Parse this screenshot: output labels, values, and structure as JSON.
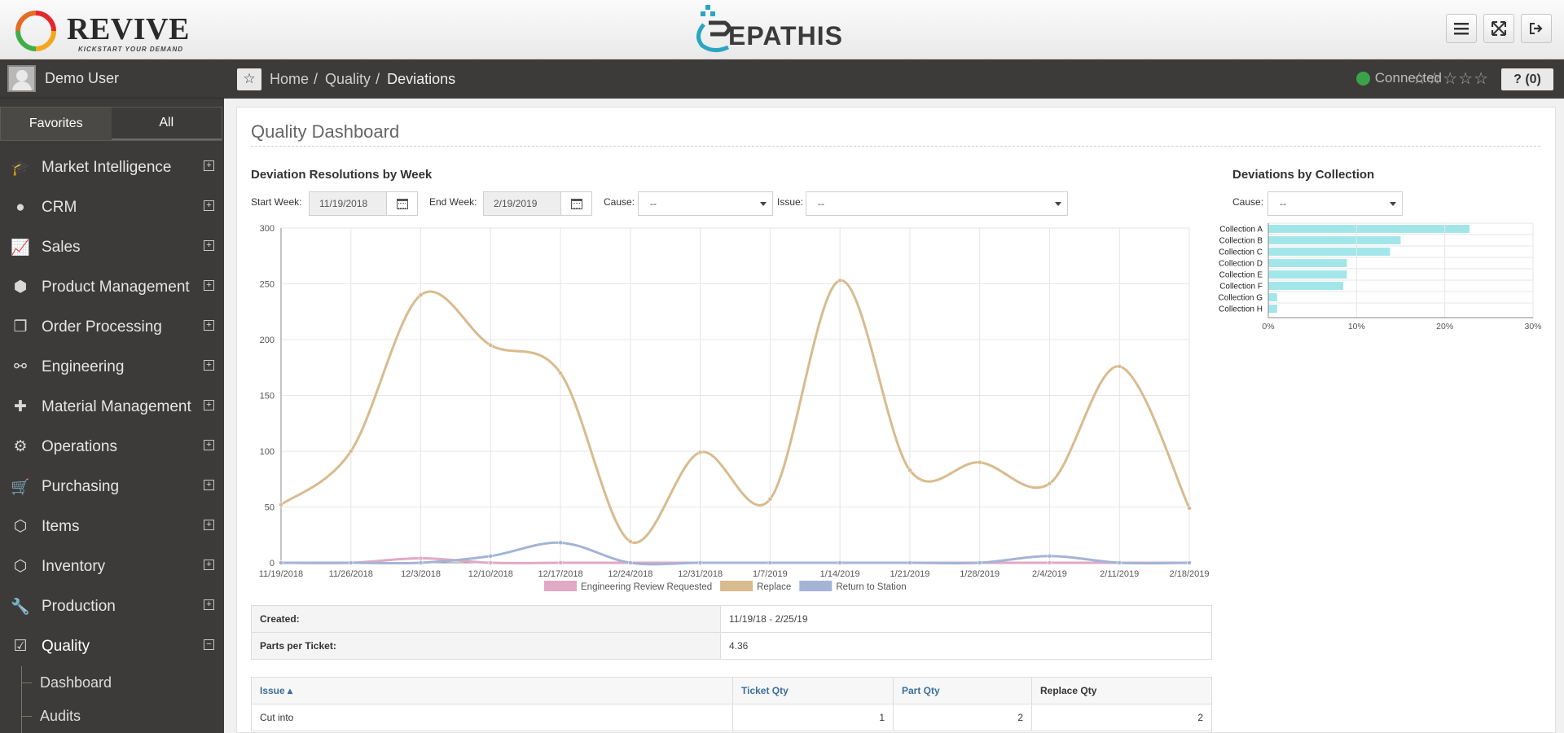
{
  "header": {
    "brand_left": "Revive",
    "brand_left_tagline": "Kickstart your demand",
    "brand_center": "EPATHIS",
    "buttons": [
      {
        "name": "menu-button",
        "icon": "hamburger-icon"
      },
      {
        "name": "fullscreen-button",
        "icon": "expand-icon"
      },
      {
        "name": "logout-button",
        "icon": "logout-icon"
      }
    ]
  },
  "sidebar": {
    "user_name": "Demo User",
    "tabs": [
      {
        "label": "Favorites"
      },
      {
        "label": "All"
      }
    ],
    "items": [
      {
        "label": "Market Intelligence",
        "icon": "graduation-cap-icon",
        "toggle": "⊞"
      },
      {
        "label": "CRM",
        "icon": "user-icon",
        "toggle": "⊞"
      },
      {
        "label": "Sales",
        "icon": "line-chart-icon",
        "toggle": "⊞"
      },
      {
        "label": "Product Management",
        "icon": "cube-icon",
        "toggle": "⊞"
      },
      {
        "label": "Order Processing",
        "icon": "documents-icon",
        "toggle": "⊞"
      },
      {
        "label": "Engineering",
        "icon": "link-icon",
        "toggle": "⊞"
      },
      {
        "label": "Material Management",
        "icon": "puzzle-icon",
        "toggle": "⊞"
      },
      {
        "label": "Operations",
        "icon": "gears-icon",
        "toggle": "⊞"
      },
      {
        "label": "Purchasing",
        "icon": "cart-icon",
        "toggle": "⊞"
      },
      {
        "label": "Items",
        "icon": "cubes-icon",
        "toggle": "⊞"
      },
      {
        "label": "Inventory",
        "icon": "cubes-icon",
        "toggle": "⊞"
      },
      {
        "label": "Production",
        "icon": "wrench-icon",
        "toggle": "⊞"
      },
      {
        "label": "Quality",
        "icon": "check-square-icon",
        "toggle": "⊟"
      }
    ],
    "sub_items": [
      {
        "label": "Dashboard"
      },
      {
        "label": "Audits"
      }
    ]
  },
  "breadcrumb": {
    "items": [
      "Home",
      "Quality",
      "Deviations"
    ],
    "separator": "/",
    "status": "Connected",
    "stars": "☆☆☆☆☆",
    "help_label": "? (0)"
  },
  "main": {
    "title": "Quality Dashboard",
    "line_section": {
      "title": "Deviation Resolutions by Week",
      "start_label": "Start Week:",
      "start_value": "11/19/2018",
      "end_label": "End Week:",
      "end_value": "2/19/2019",
      "cause_label": "Cause:",
      "cause_value": "--",
      "issue_label": "Issue:",
      "issue_value": "--"
    },
    "bar_section": {
      "title": "Deviations by Collection",
      "cause_label": "Cause:",
      "cause_value": "--"
    },
    "summary": [
      {
        "label": "Created:",
        "value": "11/19/18 - 2/25/19"
      },
      {
        "label": "Parts per Ticket:",
        "value": "4.36"
      }
    ],
    "table": {
      "columns": [
        "Issue ▴",
        "Ticket Qty",
        "Part Qty",
        "Replace Qty"
      ],
      "rows": [
        [
          "Cut into",
          "1",
          "2",
          "2"
        ]
      ]
    }
  },
  "chart_data": [
    {
      "type": "line",
      "x": [
        "11/19/2018",
        "11/26/2018",
        "12/3/2018",
        "12/10/2018",
        "12/17/2018",
        "12/24/2018",
        "12/31/2018",
        "1/7/2019",
        "1/14/2019",
        "1/21/2019",
        "1/28/2019",
        "2/4/2019",
        "2/11/2019",
        "2/18/2019"
      ],
      "series": [
        {
          "name": "Engineering Review Requested",
          "color": "#e0a9c4",
          "values": [
            0,
            0,
            4,
            0,
            0,
            0,
            0,
            0,
            0,
            0,
            0,
            0,
            0,
            0
          ]
        },
        {
          "name": "Replace",
          "color": "#d8bb8e",
          "values": [
            52,
            100,
            240,
            195,
            170,
            19,
            99,
            57,
            253,
            83,
            90,
            71,
            176,
            49
          ]
        },
        {
          "name": "Return to Station",
          "color": "#a4b4d4",
          "values": [
            0,
            0,
            0,
            6,
            18,
            0,
            0,
            0,
            0,
            0,
            0,
            6,
            0,
            0
          ]
        }
      ],
      "ylim": [
        0,
        300
      ],
      "yticks": [
        0,
        50,
        100,
        150,
        200,
        250,
        300
      ],
      "grid": true,
      "legend": "bottom"
    },
    {
      "type": "bar",
      "orientation": "horizontal",
      "categories": [
        "Collection A",
        "Collection B",
        "Collection C",
        "Collection D",
        "Collection E",
        "Collection F",
        "Collection G",
        "Collection H"
      ],
      "values": [
        22.8,
        15,
        13.8,
        8.9,
        8.9,
        8.5,
        1,
        1
      ],
      "color": "#a3e6ea",
      "xlim": [
        0,
        30
      ],
      "xticks": [
        "0%",
        "10%",
        "20%",
        "30%"
      ],
      "grid": true
    }
  ]
}
